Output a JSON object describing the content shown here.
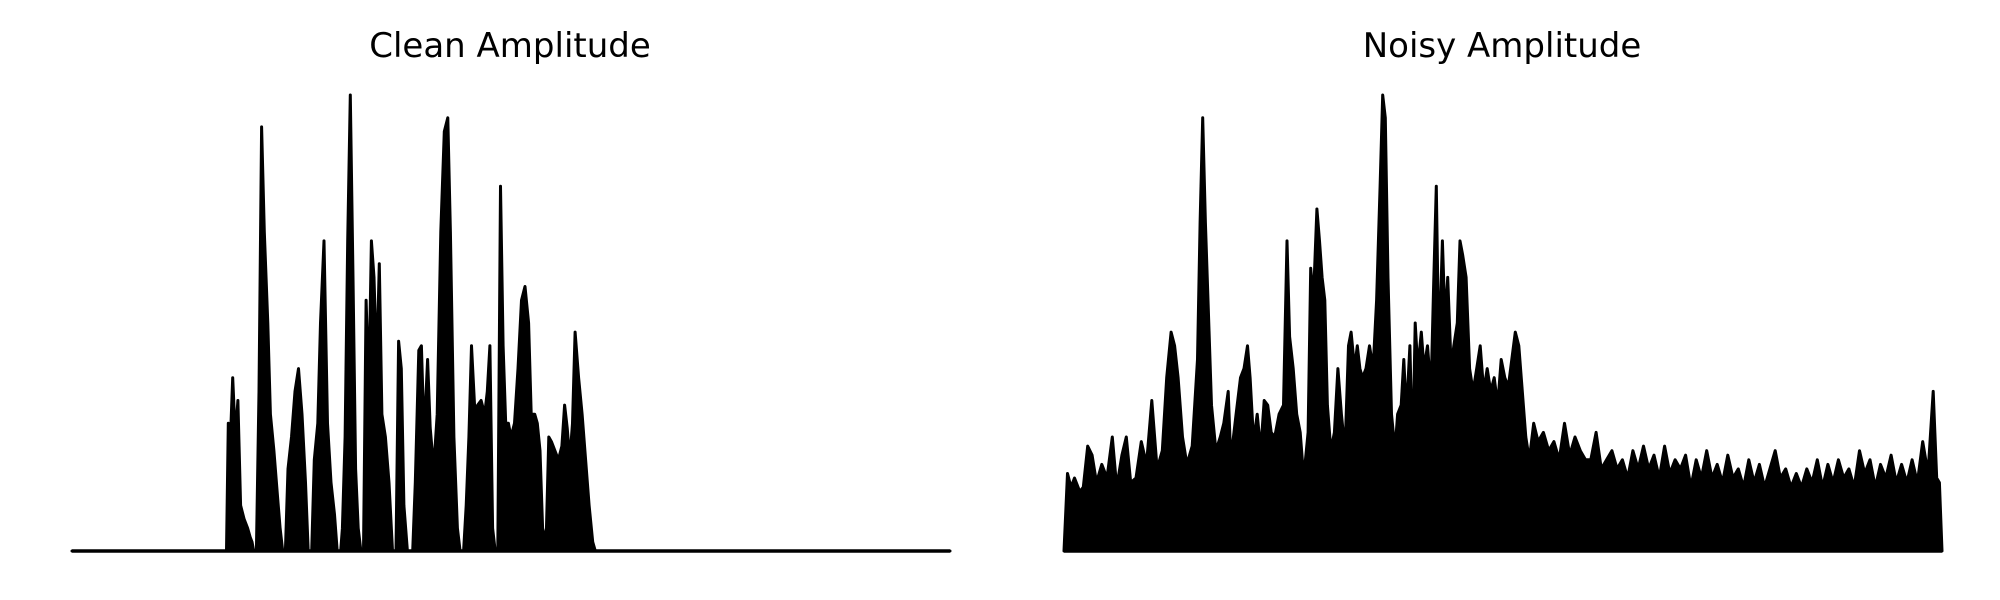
{
  "chart_data": [
    {
      "type": "area",
      "title": "Clean Amplitude",
      "xlabel": "",
      "ylabel": "",
      "axes_visible": false,
      "grid": false,
      "color": "#000000",
      "xlim": [
        0,
        1000
      ],
      "ylim": [
        0,
        1.0
      ],
      "points": [
        [
          0,
          0
        ],
        [
          176,
          0
        ],
        [
          178,
          0.28
        ],
        [
          180,
          0.22
        ],
        [
          183,
          0.38
        ],
        [
          186,
          0.25
        ],
        [
          189,
          0.33
        ],
        [
          192,
          0.1
        ],
        [
          196,
          0.07
        ],
        [
          200,
          0.05
        ],
        [
          203,
          0.03
        ],
        [
          205,
          0.02
        ],
        [
          207,
          0
        ],
        [
          210,
          0
        ],
        [
          213,
          0.35
        ],
        [
          216,
          0.93
        ],
        [
          219,
          0.7
        ],
        [
          223,
          0.5
        ],
        [
          226,
          0.3
        ],
        [
          230,
          0.22
        ],
        [
          234,
          0.12
        ],
        [
          237,
          0.05
        ],
        [
          240,
          0
        ],
        [
          243,
          0
        ],
        [
          246,
          0.18
        ],
        [
          250,
          0.25
        ],
        [
          254,
          0.35
        ],
        [
          258,
          0.4
        ],
        [
          262,
          0.3
        ],
        [
          266,
          0.15
        ],
        [
          269,
          0
        ],
        [
          273,
          0
        ],
        [
          276,
          0.2
        ],
        [
          280,
          0.28
        ],
        [
          283,
          0.5
        ],
        [
          287,
          0.68
        ],
        [
          291,
          0.28
        ],
        [
          295,
          0.15
        ],
        [
          299,
          0.08
        ],
        [
          302,
          0
        ],
        [
          306,
          0
        ],
        [
          308,
          0.05
        ],
        [
          311,
          0.25
        ],
        [
          314,
          0.68
        ],
        [
          317,
          1.0
        ],
        [
          320,
          0.6
        ],
        [
          323,
          0.18
        ],
        [
          326,
          0.05
        ],
        [
          329,
          0
        ],
        [
          332,
          0
        ],
        [
          335,
          0.55
        ],
        [
          338,
          0.35
        ],
        [
          341,
          0.68
        ],
        [
          344,
          0.6
        ],
        [
          347,
          0.4
        ],
        [
          350,
          0.63
        ],
        [
          353,
          0.3
        ],
        [
          357,
          0.25
        ],
        [
          361,
          0.15
        ],
        [
          365,
          0
        ],
        [
          369,
          0
        ],
        [
          372,
          0.46
        ],
        [
          375,
          0.4
        ],
        [
          378,
          0.1
        ],
        [
          382,
          0
        ],
        [
          388,
          0
        ],
        [
          391,
          0.15
        ],
        [
          395,
          0.44
        ],
        [
          398,
          0.45
        ],
        [
          401,
          0.25
        ],
        [
          405,
          0.42
        ],
        [
          408,
          0.27
        ],
        [
          412,
          0.18
        ],
        [
          416,
          0.3
        ],
        [
          420,
          0.7
        ],
        [
          424,
          0.92
        ],
        [
          428,
          0.95
        ],
        [
          431,
          0.7
        ],
        [
          435,
          0.25
        ],
        [
          439,
          0.05
        ],
        [
          442,
          0
        ],
        [
          446,
          0
        ],
        [
          449,
          0.1
        ],
        [
          452,
          0.25
        ],
        [
          455,
          0.45
        ],
        [
          459,
          0.3
        ],
        [
          462,
          0.32
        ],
        [
          466,
          0.33
        ],
        [
          470,
          0.3
        ],
        [
          473,
          0.35
        ],
        [
          476,
          0.45
        ],
        [
          479,
          0.05
        ],
        [
          482,
          0
        ],
        [
          485,
          0
        ],
        [
          488,
          0.8
        ],
        [
          491,
          0.45
        ],
        [
          494,
          0.28
        ],
        [
          497,
          0.28
        ],
        [
          500,
          0.25
        ],
        [
          504,
          0.28
        ],
        [
          508,
          0.4
        ],
        [
          512,
          0.55
        ],
        [
          516,
          0.58
        ],
        [
          520,
          0.5
        ],
        [
          523,
          0.3
        ],
        [
          527,
          0.3
        ],
        [
          530,
          0.28
        ],
        [
          533,
          0.22
        ],
        [
          536,
          0.05
        ],
        [
          540,
          0.02
        ],
        [
          543,
          0.25
        ],
        [
          546,
          0.24
        ],
        [
          550,
          0.22
        ],
        [
          554,
          0.2
        ],
        [
          558,
          0.23
        ],
        [
          561,
          0.32
        ],
        [
          564,
          0.27
        ],
        [
          567,
          0.2
        ],
        [
          570,
          0.28
        ],
        [
          573,
          0.48
        ],
        [
          577,
          0.38
        ],
        [
          581,
          0.3
        ],
        [
          585,
          0.2
        ],
        [
          589,
          0.1
        ],
        [
          593,
          0.02
        ],
        [
          596,
          0
        ],
        [
          1000,
          0
        ]
      ]
    },
    {
      "type": "area",
      "title": "Noisy Amplitude",
      "xlabel": "",
      "ylabel": "",
      "axes_visible": false,
      "grid": false,
      "color": "#000000",
      "xlim": [
        0,
        1000
      ],
      "ylim": [
        0,
        1.0
      ],
      "points": [
        [
          0,
          0
        ],
        [
          4,
          0.17
        ],
        [
          8,
          0.14
        ],
        [
          12,
          0.16
        ],
        [
          18,
          0.13
        ],
        [
          22,
          0.14
        ],
        [
          27,
          0.23
        ],
        [
          32,
          0.21
        ],
        [
          37,
          0.15
        ],
        [
          43,
          0.19
        ],
        [
          49,
          0.16
        ],
        [
          55,
          0.25
        ],
        [
          60,
          0.14
        ],
        [
          66,
          0.21
        ],
        [
          71,
          0.25
        ],
        [
          76,
          0.15
        ],
        [
          82,
          0.16
        ],
        [
          88,
          0.24
        ],
        [
          94,
          0.19
        ],
        [
          100,
          0.33
        ],
        [
          106,
          0.18
        ],
        [
          112,
          0.22
        ],
        [
          117,
          0.38
        ],
        [
          122,
          0.48
        ],
        [
          126,
          0.45
        ],
        [
          130,
          0.38
        ],
        [
          135,
          0.25
        ],
        [
          140,
          0.19
        ],
        [
          146,
          0.23
        ],
        [
          152,
          0.42
        ],
        [
          155,
          0.72
        ],
        [
          158,
          0.95
        ],
        [
          161,
          0.72
        ],
        [
          164,
          0.55
        ],
        [
          168,
          0.32
        ],
        [
          173,
          0.22
        ],
        [
          178,
          0.25
        ],
        [
          182,
          0.28
        ],
        [
          187,
          0.35
        ],
        [
          190,
          0.2
        ],
        [
          196,
          0.3
        ],
        [
          201,
          0.38
        ],
        [
          205,
          0.4
        ],
        [
          209,
          0.45
        ],
        [
          212,
          0.38
        ],
        [
          216,
          0.24
        ],
        [
          220,
          0.3
        ],
        [
          224,
          0.22
        ],
        [
          228,
          0.33
        ],
        [
          232,
          0.32
        ],
        [
          236,
          0.26
        ],
        [
          240,
          0.25
        ],
        [
          245,
          0.3
        ],
        [
          250,
          0.32
        ],
        [
          254,
          0.68
        ],
        [
          257,
          0.47
        ],
        [
          261,
          0.4
        ],
        [
          265,
          0.3
        ],
        [
          269,
          0.26
        ],
        [
          273,
          0.16
        ],
        [
          278,
          0.26
        ],
        [
          281,
          0.62
        ],
        [
          284,
          0.55
        ],
        [
          288,
          0.75
        ],
        [
          291,
          0.68
        ],
        [
          294,
          0.6
        ],
        [
          297,
          0.55
        ],
        [
          300,
          0.32
        ],
        [
          304,
          0.22
        ],
        [
          308,
          0.26
        ],
        [
          312,
          0.4
        ],
        [
          316,
          0.3
        ],
        [
          320,
          0.22
        ],
        [
          324,
          0.45
        ],
        [
          327,
          0.48
        ],
        [
          331,
          0.4
        ],
        [
          334,
          0.45
        ],
        [
          337,
          0.4
        ],
        [
          340,
          0.38
        ],
        [
          344,
          0.4
        ],
        [
          348,
          0.45
        ],
        [
          352,
          0.4
        ],
        [
          356,
          0.55
        ],
        [
          360,
          0.8
        ],
        [
          363,
          1.0
        ],
        [
          366,
          0.95
        ],
        [
          369,
          0.6
        ],
        [
          373,
          0.3
        ],
        [
          377,
          0.22
        ],
        [
          380,
          0.3
        ],
        [
          384,
          0.32
        ],
        [
          387,
          0.42
        ],
        [
          390,
          0.3
        ],
        [
          394,
          0.45
        ],
        [
          397,
          0.2
        ],
        [
          400,
          0.5
        ],
        [
          403,
          0.4
        ],
        [
          407,
          0.48
        ],
        [
          410,
          0.4
        ],
        [
          414,
          0.45
        ],
        [
          418,
          0.35
        ],
        [
          421,
          0.58
        ],
        [
          424,
          0.8
        ],
        [
          427,
          0.42
        ],
        [
          431,
          0.68
        ],
        [
          434,
          0.5
        ],
        [
          437,
          0.6
        ],
        [
          441,
          0.4
        ],
        [
          444,
          0.45
        ],
        [
          448,
          0.5
        ],
        [
          451,
          0.68
        ],
        [
          454,
          0.65
        ],
        [
          458,
          0.6
        ],
        [
          462,
          0.4
        ],
        [
          466,
          0.35
        ],
        [
          470,
          0.4
        ],
        [
          474,
          0.45
        ],
        [
          478,
          0.35
        ],
        [
          482,
          0.4
        ],
        [
          486,
          0.35
        ],
        [
          490,
          0.38
        ],
        [
          494,
          0.32
        ],
        [
          498,
          0.42
        ],
        [
          502,
          0.38
        ],
        [
          506,
          0.36
        ],
        [
          510,
          0.42
        ],
        [
          514,
          0.48
        ],
        [
          518,
          0.45
        ],
        [
          522,
          0.35
        ],
        [
          526,
          0.25
        ],
        [
          530,
          0.2
        ],
        [
          535,
          0.28
        ],
        [
          540,
          0.24
        ],
        [
          546,
          0.26
        ],
        [
          552,
          0.22
        ],
        [
          558,
          0.24
        ],
        [
          564,
          0.2
        ],
        [
          570,
          0.28
        ],
        [
          576,
          0.21
        ],
        [
          582,
          0.25
        ],
        [
          588,
          0.22
        ],
        [
          594,
          0.2
        ],
        [
          600,
          0.2
        ],
        [
          606,
          0.26
        ],
        [
          612,
          0.18
        ],
        [
          618,
          0.2
        ],
        [
          624,
          0.22
        ],
        [
          630,
          0.18
        ],
        [
          636,
          0.2
        ],
        [
          642,
          0.16
        ],
        [
          648,
          0.22
        ],
        [
          654,
          0.18
        ],
        [
          660,
          0.23
        ],
        [
          666,
          0.18
        ],
        [
          672,
          0.21
        ],
        [
          678,
          0.16
        ],
        [
          684,
          0.23
        ],
        [
          690,
          0.17
        ],
        [
          696,
          0.2
        ],
        [
          702,
          0.18
        ],
        [
          708,
          0.21
        ],
        [
          714,
          0.14
        ],
        [
          720,
          0.2
        ],
        [
          726,
          0.16
        ],
        [
          732,
          0.22
        ],
        [
          738,
          0.16
        ],
        [
          744,
          0.19
        ],
        [
          750,
          0.15
        ],
        [
          756,
          0.21
        ],
        [
          762,
          0.16
        ],
        [
          768,
          0.18
        ],
        [
          774,
          0.14
        ],
        [
          780,
          0.2
        ],
        [
          786,
          0.15
        ],
        [
          792,
          0.19
        ],
        [
          798,
          0.14
        ],
        [
          804,
          0.18
        ],
        [
          810,
          0.22
        ],
        [
          816,
          0.16
        ],
        [
          822,
          0.18
        ],
        [
          828,
          0.14
        ],
        [
          834,
          0.17
        ],
        [
          840,
          0.14
        ],
        [
          846,
          0.18
        ],
        [
          852,
          0.15
        ],
        [
          858,
          0.2
        ],
        [
          864,
          0.14
        ],
        [
          870,
          0.19
        ],
        [
          876,
          0.15
        ],
        [
          882,
          0.2
        ],
        [
          888,
          0.16
        ],
        [
          894,
          0.18
        ],
        [
          900,
          0.14
        ],
        [
          906,
          0.22
        ],
        [
          912,
          0.17
        ],
        [
          918,
          0.2
        ],
        [
          924,
          0.14
        ],
        [
          930,
          0.19
        ],
        [
          936,
          0.16
        ],
        [
          942,
          0.21
        ],
        [
          948,
          0.15
        ],
        [
          954,
          0.19
        ],
        [
          960,
          0.15
        ],
        [
          966,
          0.2
        ],
        [
          972,
          0.15
        ],
        [
          978,
          0.24
        ],
        [
          984,
          0.17
        ],
        [
          990,
          0.35
        ],
        [
          994,
          0.16
        ],
        [
          997,
          0.15
        ],
        [
          1000,
          0
        ]
      ]
    }
  ]
}
